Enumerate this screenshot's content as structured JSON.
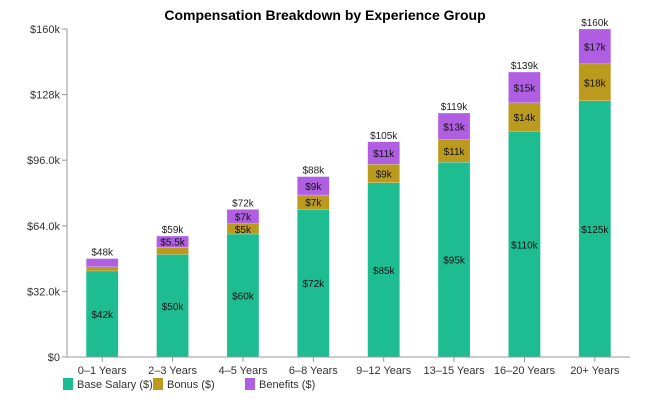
{
  "chart_data": {
    "type": "bar",
    "stacked": true,
    "title": "Compensation Breakdown by Experience Group",
    "xlabel": "",
    "ylabel": "",
    "ylim": [
      0,
      160000
    ],
    "yticks": [
      0,
      32000,
      64000,
      96000,
      128000,
      160000
    ],
    "ytick_labels": [
      "$0",
      "$32.0k",
      "$64.0k",
      "$96.0k",
      "$128k",
      "$160k"
    ],
    "categories": [
      "0–1 Years",
      "2–3 Years",
      "4–5 Years",
      "6–8 Years",
      "9–12 Years",
      "13–15 Years",
      "16–20 Years",
      "20+ Years"
    ],
    "series": [
      {
        "name": "Base Salary ($)",
        "color": "#1dbc91",
        "values": [
          42000,
          50000,
          60000,
          72000,
          85000,
          95000,
          110000,
          125000
        ],
        "labels": [
          "$42k",
          "$50k",
          "$60k",
          "$72k",
          "$85k",
          "$95k",
          "$110k",
          "$125k"
        ]
      },
      {
        "name": "Bonus ($)",
        "color": "#bc9a1d",
        "values": [
          2000,
          3500,
          5000,
          7000,
          9000,
          11000,
          14000,
          18000
        ],
        "labels": [
          "",
          "",
          "$5k",
          "$7k",
          "$9k",
          "$11k",
          "$14k",
          "$18k"
        ]
      },
      {
        "name": "Benefits ($)",
        "color": "#b05fe3",
        "values": [
          4000,
          5500,
          7000,
          9000,
          11000,
          13000,
          15000,
          17000
        ],
        "labels": [
          "",
          "$5.5k",
          "$7k",
          "$9k",
          "$11k",
          "$13k",
          "$15k",
          "$17k"
        ]
      }
    ],
    "totals": [
      "$48k",
      "$59k",
      "$72k",
      "$88k",
      "$105k",
      "$119k",
      "$139k",
      "$160k"
    ],
    "grid": false,
    "legend": "bottom-left"
  }
}
